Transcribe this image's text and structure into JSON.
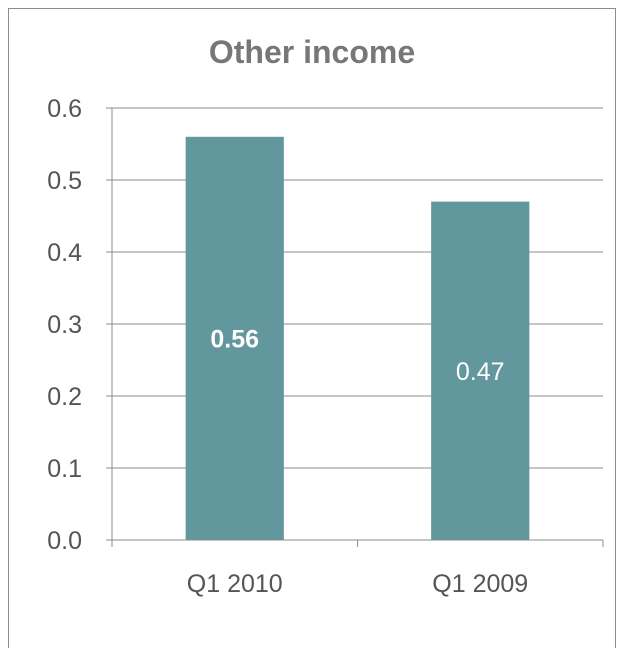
{
  "chart_data": {
    "type": "bar",
    "title": "Other income",
    "xlabel": "",
    "ylabel": "",
    "categories": [
      "Q1 2010",
      "Q1 2009"
    ],
    "values": [
      0.56,
      0.47
    ],
    "data_labels": [
      "0.56",
      "0.47"
    ],
    "data_label_bold": [
      true,
      false
    ],
    "ylim": [
      0,
      0.6
    ],
    "yticks": [
      "0.0",
      "0.1",
      "0.2",
      "0.3",
      "0.4",
      "0.5",
      "0.6"
    ],
    "ytick_values": [
      0,
      0.1,
      0.2,
      0.3,
      0.4,
      0.5,
      0.6
    ],
    "grid": true,
    "legend": "none",
    "bar_color": "#62979d",
    "grid_color": "#8c8c8c"
  }
}
